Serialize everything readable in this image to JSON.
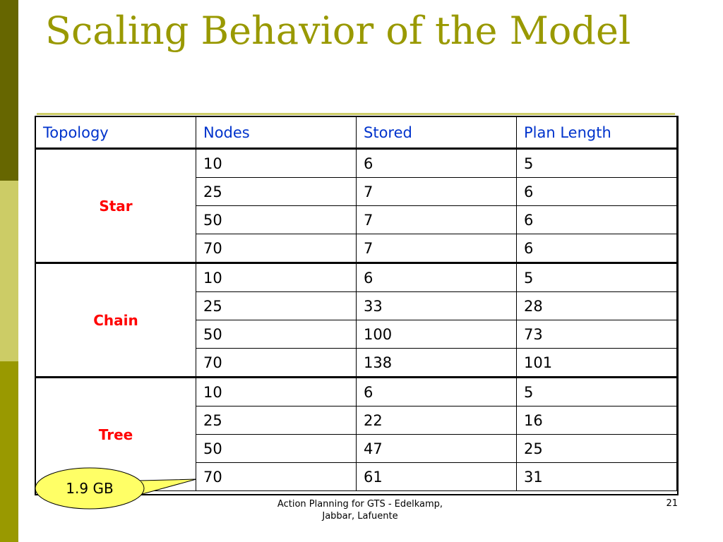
{
  "title": "Scaling Behavior of the Model",
  "table": {
    "headers": [
      "Topology",
      "Nodes",
      "Stored",
      "Plan Length"
    ],
    "groups": [
      {
        "topology": "Star",
        "rows": [
          [
            "10",
            "6",
            "5"
          ],
          [
            "25",
            "7",
            "6"
          ],
          [
            "50",
            "7",
            "6"
          ],
          [
            "70",
            "7",
            "6"
          ]
        ]
      },
      {
        "topology": "Chain",
        "rows": [
          [
            "10",
            "6",
            "5"
          ],
          [
            "25",
            "33",
            "28"
          ],
          [
            "50",
            "100",
            "73"
          ],
          [
            "70",
            "138",
            "101"
          ]
        ]
      },
      {
        "topology": "Tree",
        "rows": [
          [
            "10",
            "6",
            "5"
          ],
          [
            "25",
            "22",
            "16"
          ],
          [
            "50",
            "47",
            "25"
          ],
          [
            "70",
            "61",
            "31"
          ]
        ]
      }
    ]
  },
  "callout": "1.9 GB",
  "footer": {
    "line1": "Action Planning for GTS - Edelkamp,",
    "line2": "Jabbar, Lafuente",
    "page_number": "21"
  },
  "colors": {
    "title": "#999900",
    "header_text": "#0033cc",
    "topology_text": "#ff0000",
    "callout_fill": "#ffff66"
  }
}
